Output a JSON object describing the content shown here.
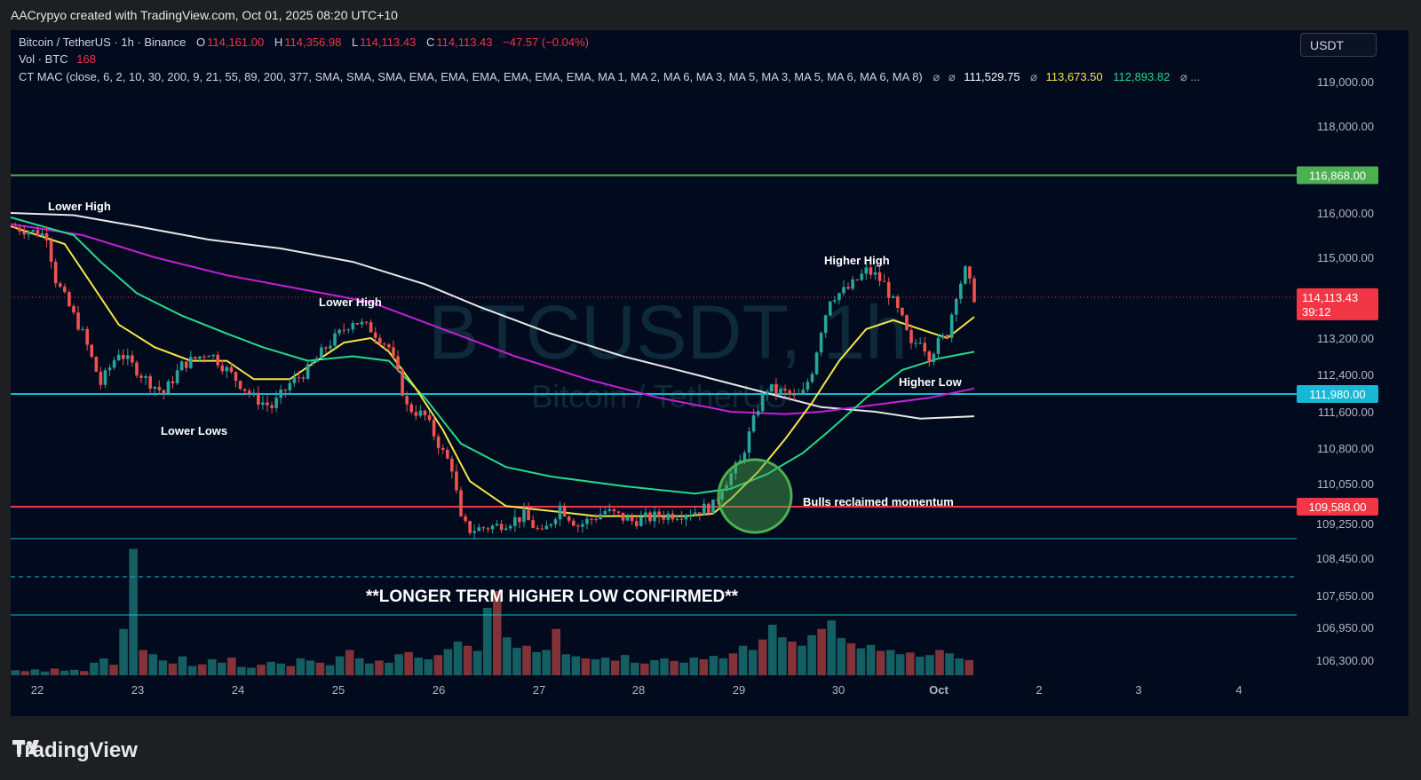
{
  "header": {
    "credit": "AACrypyo created with TradingView.com, Oct 01, 2025 08:20 UTC+10"
  },
  "legend": {
    "symbol": "Bitcoin / TetherUS · 1h · Binance",
    "o_label": "O",
    "o_value": "114,161.00",
    "h_label": "H",
    "h_value": "114,356.98",
    "l_label": "L",
    "l_value": "114,113.43",
    "c_label": "C",
    "c_value": "114,113.43",
    "change": "−47.57 (−0.04%)",
    "vol_label": "Vol · BTC",
    "vol_value": "168",
    "indicator": "CT MAC (close, 6, 2, 10, 30, 200, 9, 21, 55, 89, 200, 377, SMA, SMA, SMA, EMA, EMA, EMA, EMA, EMA, EMA, MA 1, MA 2, MA 6, MA 3, MA 5, MA 3, MA 5, MA 6, MA 6, MA 8)",
    "ind_sym1": "⌀",
    "ind_sym2": "⌀",
    "ind_val1": "111,529.75",
    "ind_sym3": "⌀",
    "ind_val2": "113,673.50",
    "ind_val3": "112,893.82",
    "ind_tail": "⌀ ..."
  },
  "currency_button": "USDT",
  "watermark": {
    "main": "BTCUSDT, 1h",
    "sub": "Bitcoin / TetherUS"
  },
  "footer": {
    "brand": "TradingView"
  },
  "colors": {
    "bg": "#020a1e",
    "up": "#26a69a",
    "down": "#ef5350",
    "sma_white": "#e8e8e8",
    "ema_magenta": "#c51fd6",
    "ema_green": "#25d98a",
    "ema_yellow": "#f5e642"
  },
  "chart_data": {
    "type": "candlestick",
    "ylim": [
      105900,
      119600
    ],
    "x_ticks": [
      "22",
      "23",
      "24",
      "25",
      "26",
      "27",
      "28",
      "29",
      "30",
      "Oct",
      "2",
      "3",
      "4"
    ],
    "y_ticks": [
      "119,000.00",
      "118,000.00",
      "116,000.00",
      "115,000.00",
      "113,200.00",
      "112,400.00",
      "111,600.00",
      "110,800.00",
      "110,050.00",
      "109,250.00",
      "108,450.00",
      "107,650.00",
      "106,950.00",
      "106,300.00"
    ],
    "y_tick_values": [
      119000,
      118000,
      116000,
      115000,
      113200,
      112400,
      111600,
      110800,
      110050,
      109250,
      108450,
      107650,
      106950,
      106300
    ],
    "price_levels": [
      {
        "price": 116868,
        "label": "116,868.00",
        "color": "#4caf50"
      },
      {
        "price": 111980,
        "label": "111,980.00",
        "color": "#17b8d6"
      },
      {
        "price": 109588,
        "label": "109,588.00",
        "color": "#f23645"
      }
    ],
    "current_price": {
      "price": 114113.43,
      "label": "114,113.43",
      "countdown": "39:12",
      "color": "#f23645"
    },
    "price_path": [
      [
        0,
        115700
      ],
      [
        4,
        115500
      ],
      [
        5,
        114500
      ],
      [
        8,
        113300
      ],
      [
        10,
        112200
      ],
      [
        12,
        112900
      ],
      [
        15,
        112300
      ],
      [
        17,
        112000
      ],
      [
        19,
        112600
      ],
      [
        22,
        112900
      ],
      [
        24,
        112500
      ],
      [
        27,
        111900
      ],
      [
        29,
        111700
      ],
      [
        31,
        112200
      ],
      [
        33,
        112500
      ],
      [
        35,
        113000
      ],
      [
        37,
        113400
      ],
      [
        38,
        113600
      ],
      [
        40,
        113400
      ],
      [
        42,
        113000
      ],
      [
        43,
        112400
      ],
      [
        44,
        111700
      ],
      [
        46,
        111500
      ],
      [
        48,
        110700
      ],
      [
        49,
        110400
      ],
      [
        50,
        109300
      ],
      [
        51,
        109100
      ],
      [
        54,
        109200
      ],
      [
        57,
        109400
      ],
      [
        59,
        109000
      ],
      [
        61,
        109600
      ],
      [
        63,
        109200
      ],
      [
        66,
        109500
      ],
      [
        69,
        109300
      ],
      [
        72,
        109400
      ],
      [
        76,
        109500
      ],
      [
        78,
        109600
      ],
      [
        79,
        110000
      ],
      [
        81,
        110500
      ],
      [
        82,
        111100
      ],
      [
        83,
        111700
      ],
      [
        84,
        112100
      ],
      [
        86,
        112000
      ],
      [
        87,
        111900
      ],
      [
        88,
        112000
      ],
      [
        89,
        112500
      ],
      [
        90,
        113400
      ],
      [
        91,
        114100
      ],
      [
        93,
        114300
      ],
      [
        94,
        114500
      ],
      [
        95,
        114700
      ],
      [
        96,
        114600
      ],
      [
        97,
        114400
      ],
      [
        98,
        114000
      ],
      [
        99,
        113600
      ],
      [
        100,
        113000
      ],
      [
        101,
        113200
      ],
      [
        102,
        112800
      ],
      [
        103,
        113100
      ],
      [
        104,
        113300
      ],
      [
        105,
        114200
      ],
      [
        106,
        114700
      ],
      [
        107,
        114113
      ]
    ],
    "moving_averages": [
      {
        "color": "#e8e8e8",
        "points": [
          [
            0,
            116000
          ],
          [
            7,
            115950
          ],
          [
            14,
            115700
          ],
          [
            22,
            115400
          ],
          [
            30,
            115200
          ],
          [
            38,
            114900
          ],
          [
            46,
            114400
          ],
          [
            52,
            113900
          ],
          [
            60,
            113300
          ],
          [
            68,
            112800
          ],
          [
            76,
            112400
          ],
          [
            84,
            112000
          ],
          [
            90,
            111700
          ],
          [
            96,
            111600
          ],
          [
            101,
            111450
          ],
          [
            107,
            111500
          ]
        ]
      },
      {
        "color": "#c51fd6",
        "points": [
          [
            0,
            115750
          ],
          [
            8,
            115500
          ],
          [
            16,
            115000
          ],
          [
            24,
            114600
          ],
          [
            32,
            114300
          ],
          [
            40,
            114000
          ],
          [
            48,
            113400
          ],
          [
            56,
            112800
          ],
          [
            64,
            112300
          ],
          [
            72,
            111900
          ],
          [
            80,
            111600
          ],
          [
            86,
            111550
          ],
          [
            90,
            111600
          ],
          [
            96,
            111750
          ],
          [
            102,
            111900
          ],
          [
            107,
            112100
          ]
        ]
      },
      {
        "color": "#25d98a",
        "points": [
          [
            0,
            115900
          ],
          [
            7,
            115500
          ],
          [
            10,
            114900
          ],
          [
            14,
            114200
          ],
          [
            19,
            113700
          ],
          [
            24,
            113300
          ],
          [
            28,
            113000
          ],
          [
            33,
            112700
          ],
          [
            38,
            112800
          ],
          [
            42,
            112700
          ],
          [
            46,
            111900
          ],
          [
            50,
            110900
          ],
          [
            55,
            110400
          ],
          [
            60,
            110200
          ],
          [
            68,
            110000
          ],
          [
            76,
            109850
          ],
          [
            80,
            109950
          ],
          [
            84,
            110250
          ],
          [
            88,
            110700
          ],
          [
            91,
            111200
          ],
          [
            95,
            111900
          ],
          [
            99,
            112500
          ],
          [
            103,
            112750
          ],
          [
            107,
            112900
          ]
        ]
      },
      {
        "color": "#f5e642",
        "points": [
          [
            0,
            115700
          ],
          [
            6,
            115300
          ],
          [
            9,
            114400
          ],
          [
            12,
            113500
          ],
          [
            16,
            113000
          ],
          [
            20,
            112700
          ],
          [
            24,
            112700
          ],
          [
            27,
            112300
          ],
          [
            31,
            112300
          ],
          [
            34,
            112700
          ],
          [
            37,
            113100
          ],
          [
            40,
            113200
          ],
          [
            42,
            112900
          ],
          [
            45,
            112100
          ],
          [
            48,
            111200
          ],
          [
            51,
            110100
          ],
          [
            55,
            109600
          ],
          [
            60,
            109500
          ],
          [
            65,
            109400
          ],
          [
            70,
            109400
          ],
          [
            75,
            109400
          ],
          [
            78,
            109450
          ],
          [
            80,
            109750
          ],
          [
            83,
            110300
          ],
          [
            86,
            111000
          ],
          [
            89,
            111800
          ],
          [
            92,
            112700
          ],
          [
            95,
            113400
          ],
          [
            98,
            113600
          ],
          [
            101,
            113400
          ],
          [
            104,
            113200
          ],
          [
            107,
            113673
          ]
        ]
      }
    ],
    "volume_ylim": [
      0,
      400
    ],
    "volume_series": [
      12,
      10,
      14,
      9,
      16,
      11,
      13,
      10,
      30,
      40,
      25,
      110,
      300,
      60,
      50,
      35,
      28,
      45,
      22,
      26,
      38,
      30,
      42,
      20,
      18,
      25,
      32,
      28,
      22,
      40,
      35,
      30,
      24,
      45,
      60,
      40,
      28,
      35,
      30,
      50,
      55,
      42,
      38,
      48,
      62,
      80,
      70,
      58,
      160,
      200,
      90,
      65,
      70,
      55,
      60,
      110,
      50,
      45,
      40,
      38,
      42,
      35,
      48,
      30,
      28,
      36,
      40,
      34,
      30,
      42,
      38,
      46,
      40,
      52,
      70,
      60,
      85,
      120,
      90,
      80,
      70,
      95,
      110,
      130,
      88,
      76,
      64,
      72,
      58,
      60,
      50,
      54,
      44,
      48,
      60,
      52,
      40,
      36
    ]
  },
  "annotations": {
    "lower_high_1": "Lower High",
    "lower_high_2": "Lower High",
    "lower_lows": "Lower Lows",
    "higher_high": "Higher High",
    "higher_low": "Higher Low",
    "bulls": "Bulls reclaimed momentum",
    "banner": "**LONGER TERM HIGHER LOW CONFIRMED**"
  }
}
